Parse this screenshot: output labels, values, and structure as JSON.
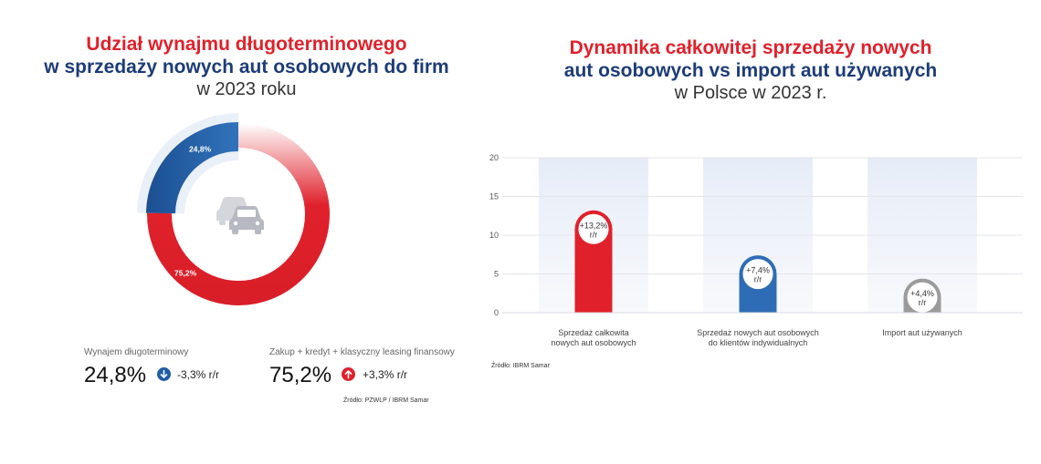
{
  "colors": {
    "red": "#e0212b",
    "navy": "#1d3c78",
    "blue": "#2e6db5",
    "grey": "#9b9b9b"
  },
  "left": {
    "title_line1": "Udział wynajmu długoterminowego",
    "title_line2": "w sprzedaży nowych aut osobowych do firm",
    "title_line3": "w 2023 roku",
    "center_icon": "cars-icon",
    "stats": [
      {
        "label": "Wynajem długoterminowy",
        "value": "24,8%",
        "change": "-3,3% r/r",
        "direction": "down",
        "arrow_icon": "arrow-down-icon",
        "color": "#2e6db5"
      },
      {
        "label": "Zakup + kredyt + klasyczny leasing finansowy",
        "value": "75,2%",
        "change": "+3,3% r/r",
        "direction": "up",
        "arrow_icon": "arrow-up-icon",
        "color": "#e0212b"
      }
    ],
    "source": "Źródło: PZWLP / IBRM Samar"
  },
  "right": {
    "title_line1": "Dynamika całkowitej sprzedaży nowych",
    "title_line2": "aut osobowych vs import aut używanych",
    "title_line3": "w Polsce w 2023 r.",
    "source": "Źródło: IBRM Samar"
  },
  "chart_data": [
    {
      "type": "pie",
      "categories": [
        "Wynajem długoterminowy",
        "Zakup + kredyt + klasyczny leasing finansowy"
      ],
      "values": [
        24.8,
        75.2
      ],
      "labels": [
        "24,8%",
        "75,2%"
      ],
      "colors": [
        "#2e6db5",
        "#e0212b"
      ]
    },
    {
      "type": "bar",
      "categories": [
        [
          "Sprzedaż całkowita",
          "nowych aut osobowych"
        ],
        [
          "Sprzedaż nowych aut osobowych",
          "do klientów indywidualnych"
        ],
        [
          "Import aut używanych"
        ]
      ],
      "values": [
        13.2,
        7.4,
        4.4
      ],
      "value_labels": [
        [
          "+13,2%",
          "r/r"
        ],
        [
          "+7,4%",
          "r/r"
        ],
        [
          "+4,4%",
          "r/r"
        ]
      ],
      "colors": [
        "#e0212b",
        "#2e6db5",
        "#9b9b9b"
      ],
      "ylim": [
        0,
        20
      ],
      "yticks": [
        0,
        5,
        10,
        15,
        20
      ],
      "grid": true
    }
  ]
}
